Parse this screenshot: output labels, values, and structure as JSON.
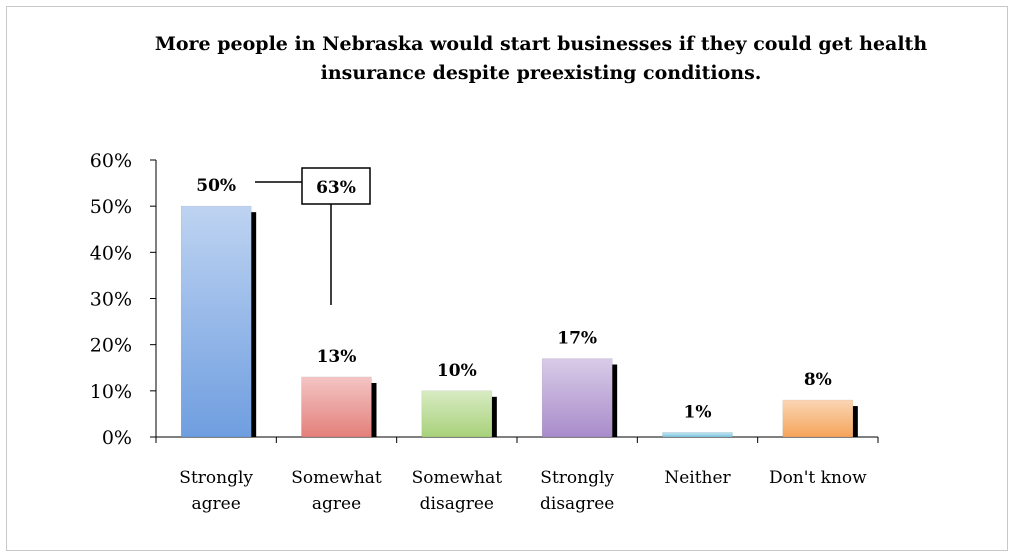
{
  "chart_data": {
    "type": "bar",
    "title_lines": [
      "More people in Nebraska would start businesses if they could get health",
      "insurance despite preexisting conditions."
    ],
    "categories": [
      [
        "Strongly",
        "agree"
      ],
      [
        "Somewhat",
        "agree"
      ],
      [
        "Somewhat",
        "disagree"
      ],
      [
        "Strongly",
        "disagree"
      ],
      [
        "Neither"
      ],
      [
        "Don't know"
      ]
    ],
    "values": [
      50,
      13,
      10,
      17,
      1,
      8
    ],
    "data_labels": [
      "50%",
      "13%",
      "10%",
      "17%",
      "1%",
      "8%"
    ],
    "colors": [
      "#6f9ee0",
      "#e47f7b",
      "#a8d27a",
      "#a98ccb",
      "#7cc6e0",
      "#f5a45a"
    ],
    "ylim": [
      0,
      60
    ],
    "yticks": [
      "0%",
      "10%",
      "20%",
      "30%",
      "40%",
      "50%",
      "60%"
    ],
    "callout": {
      "text": "63%"
    },
    "grid": false,
    "legend": "none"
  }
}
